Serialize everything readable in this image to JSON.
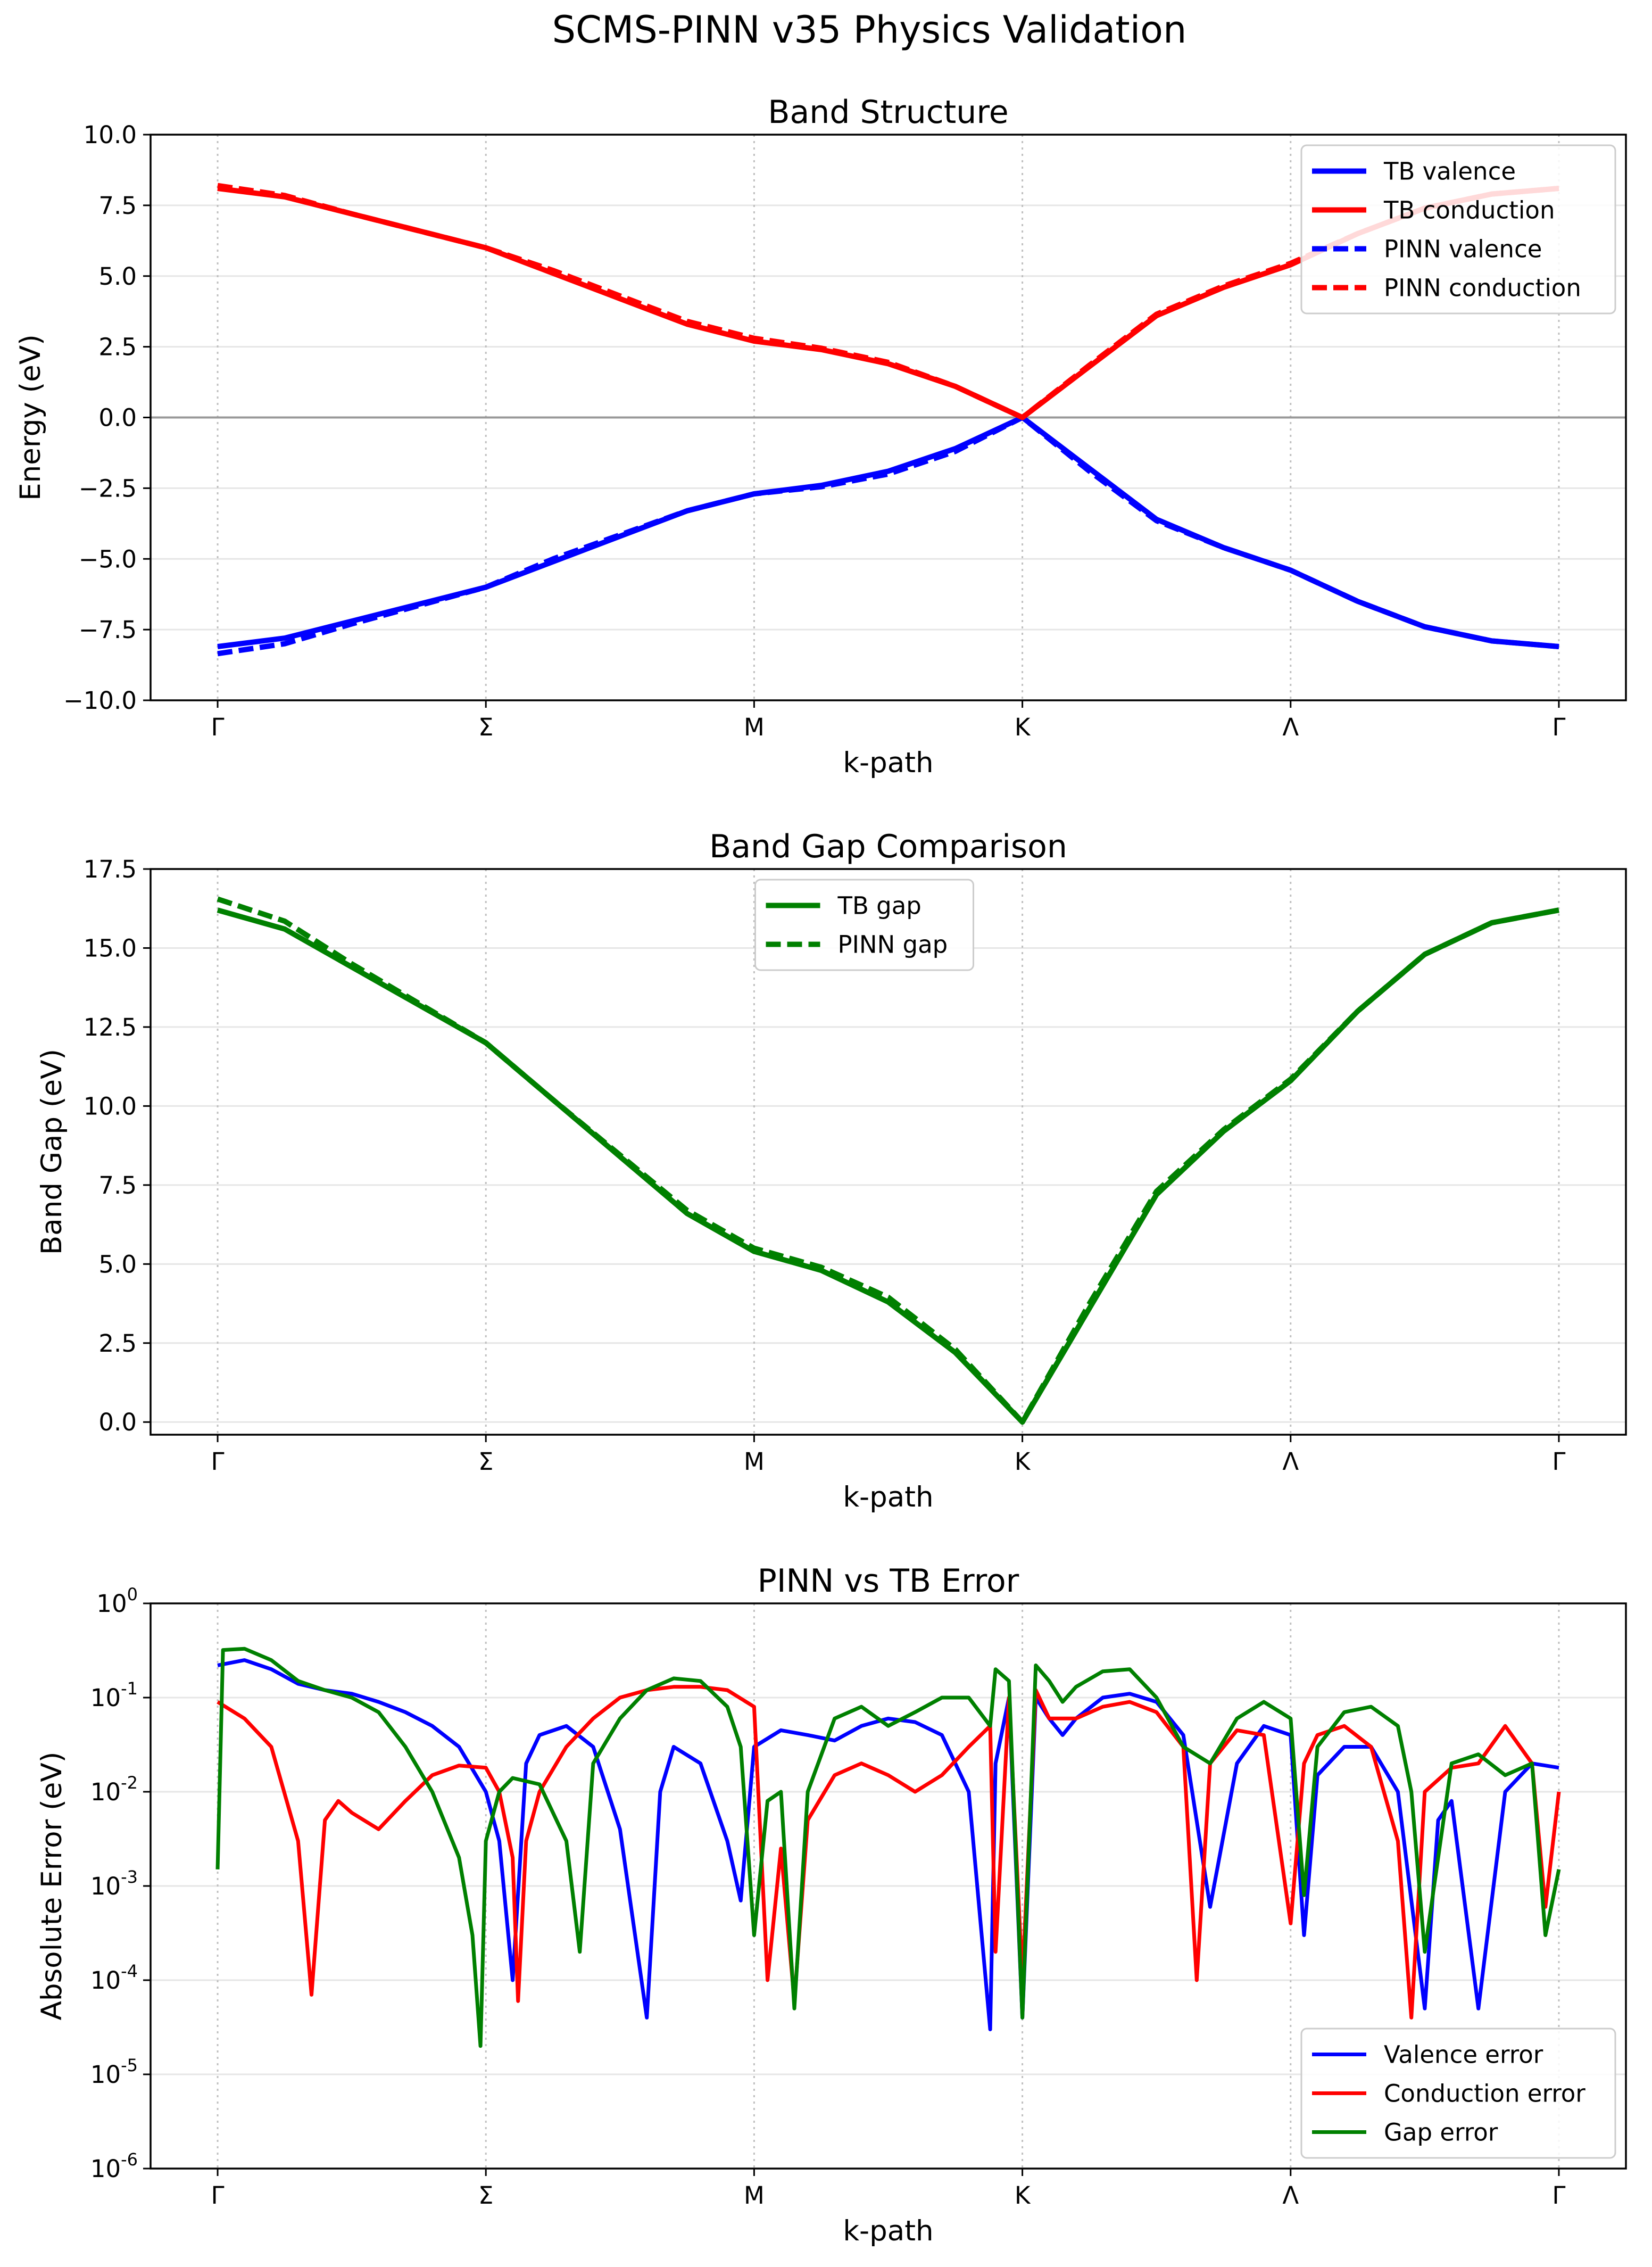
{
  "figure": {
    "title": "SCMS-PINN v35 Physics Validation"
  },
  "chart_data": [
    {
      "type": "line",
      "title": "Band Structure",
      "xlabel": "k-path",
      "ylabel": "Energy (eV)",
      "xlim": [
        0,
        5
      ],
      "ylim": [
        -10,
        10
      ],
      "yscale": "linear",
      "yticks": [
        -10,
        -7.5,
        -5,
        -2.5,
        0,
        2.5,
        5,
        7.5,
        10
      ],
      "ytick_labels": [
        "−10.0",
        "−7.5",
        "−5.0",
        "−2.5",
        "0.0",
        "2.5",
        "5.0",
        "7.5",
        "10.0"
      ],
      "xticks": [
        0,
        1,
        2,
        3,
        4,
        5
      ],
      "xtick_labels": [
        "Γ",
        "Σ",
        "M",
        "K",
        "Λ",
        "Γ"
      ],
      "grid": "y",
      "zero_line": true,
      "legend_position": "top-right",
      "series": [
        {
          "name": "TB valence",
          "color": "#0000ff",
          "style": "solid",
          "x": [
            0,
            0.25,
            0.5,
            0.75,
            1.0,
            1.25,
            1.5,
            1.75,
            2.0,
            2.25,
            2.5,
            2.75,
            3.0,
            3.25,
            3.5,
            3.75,
            4.0,
            4.25,
            4.5,
            4.75,
            5.0
          ],
          "y": [
            -8.1,
            -7.8,
            -7.2,
            -6.6,
            -6.0,
            -5.1,
            -4.2,
            -3.3,
            -2.7,
            -2.4,
            -1.9,
            -1.1,
            0.0,
            -1.8,
            -3.6,
            -4.6,
            -5.4,
            -6.5,
            -7.4,
            -7.9,
            -8.1
          ]
        },
        {
          "name": "TB conduction",
          "color": "#ff0000",
          "style": "solid",
          "x": [
            0,
            0.25,
            0.5,
            0.75,
            1.0,
            1.25,
            1.5,
            1.75,
            2.0,
            2.25,
            2.5,
            2.75,
            3.0,
            3.25,
            3.5,
            3.75,
            4.0,
            4.25,
            4.5,
            4.75,
            5.0
          ],
          "y": [
            8.1,
            7.8,
            7.2,
            6.6,
            6.0,
            5.1,
            4.2,
            3.3,
            2.7,
            2.4,
            1.9,
            1.1,
            0.0,
            1.8,
            3.6,
            4.6,
            5.4,
            6.5,
            7.4,
            7.9,
            8.1
          ]
        },
        {
          "name": "PINN valence",
          "color": "#0000ff",
          "style": "dashed",
          "x": [
            0,
            0.25,
            0.5,
            0.75,
            1.0,
            1.25,
            1.5,
            1.75,
            2.0,
            2.25,
            2.5,
            2.75,
            3.0,
            3.25,
            3.5,
            3.75,
            4.0,
            4.25,
            4.5,
            4.75,
            5.0
          ],
          "y": [
            -8.35,
            -8.0,
            -7.3,
            -6.65,
            -6.0,
            -5.0,
            -4.15,
            -3.3,
            -2.7,
            -2.45,
            -2.0,
            -1.2,
            0.0,
            -1.9,
            -3.65,
            -4.6,
            -5.4,
            -6.5,
            -7.4,
            -7.9,
            -8.1
          ]
        },
        {
          "name": "PINN conduction",
          "color": "#ff0000",
          "style": "dashed",
          "x": [
            0,
            0.25,
            0.5,
            0.75,
            1.0,
            1.25,
            1.5,
            1.75,
            2.0,
            2.25,
            2.5,
            2.75,
            3.0,
            3.25,
            3.5,
            3.75,
            4.0,
            4.25,
            4.5,
            4.75,
            5.0
          ],
          "y": [
            8.2,
            7.85,
            7.2,
            6.6,
            6.0,
            5.2,
            4.3,
            3.4,
            2.8,
            2.45,
            1.95,
            1.1,
            0.0,
            1.85,
            3.65,
            4.65,
            5.45,
            6.5,
            7.4,
            7.9,
            8.1
          ]
        }
      ]
    },
    {
      "type": "line",
      "title": "Band Gap Comparison",
      "xlabel": "k-path",
      "ylabel": "Band Gap (eV)",
      "xlim": [
        0,
        5
      ],
      "ylim": [
        -0.4,
        17.5
      ],
      "yscale": "linear",
      "yticks": [
        0,
        2.5,
        5,
        7.5,
        10,
        12.5,
        15,
        17.5
      ],
      "ytick_labels": [
        "0.0",
        "2.5",
        "5.0",
        "7.5",
        "10.0",
        "12.5",
        "15.0",
        "17.5"
      ],
      "xticks": [
        0,
        1,
        2,
        3,
        4,
        5
      ],
      "xtick_labels": [
        "Γ",
        "Σ",
        "M",
        "K",
        "Λ",
        "Γ"
      ],
      "grid": "y",
      "zero_line": false,
      "legend_position": "top-center",
      "series": [
        {
          "name": "TB gap",
          "color": "#008000",
          "style": "solid",
          "x": [
            0,
            0.25,
            0.5,
            0.75,
            1.0,
            1.25,
            1.5,
            1.75,
            2.0,
            2.25,
            2.5,
            2.75,
            3.0,
            3.25,
            3.5,
            3.75,
            4.0,
            4.25,
            4.5,
            4.75,
            5.0
          ],
          "y": [
            16.2,
            15.6,
            14.4,
            13.2,
            12.0,
            10.2,
            8.4,
            6.6,
            5.4,
            4.8,
            3.8,
            2.2,
            0.0,
            3.6,
            7.2,
            9.2,
            10.8,
            13.0,
            14.8,
            15.8,
            16.2
          ]
        },
        {
          "name": "PINN gap",
          "color": "#008000",
          "style": "dashed",
          "x": [
            0,
            0.25,
            0.5,
            0.75,
            1.0,
            1.25,
            1.5,
            1.75,
            2.0,
            2.25,
            2.5,
            2.75,
            3.0,
            3.25,
            3.5,
            3.75,
            4.0,
            4.25,
            4.5,
            4.75,
            5.0
          ],
          "y": [
            16.55,
            15.85,
            14.5,
            13.25,
            12.0,
            10.2,
            8.45,
            6.7,
            5.5,
            4.9,
            3.95,
            2.3,
            0.0,
            3.75,
            7.3,
            9.25,
            10.85,
            13.0,
            14.8,
            15.8,
            16.2
          ]
        }
      ]
    },
    {
      "type": "line",
      "title": "PINN vs TB Error",
      "xlabel": "k-path",
      "ylabel": "Absolute Error (eV)",
      "xlim": [
        0,
        5
      ],
      "ylim": [
        1e-06,
        1
      ],
      "yscale": "log",
      "ytick_exponents": [
        0,
        -1,
        -2,
        -3,
        -4,
        -5,
        -6
      ],
      "ytick_base": "10",
      "xticks": [
        0,
        1,
        2,
        3,
        4,
        5
      ],
      "xtick_labels": [
        "Γ",
        "Σ",
        "M",
        "K",
        "Λ",
        "Γ"
      ],
      "grid": "y",
      "zero_line": false,
      "legend_position": "bottom-right",
      "series": [
        {
          "name": "Valence error",
          "color": "#0000ff",
          "style": "solid",
          "x": [
            0,
            0.1,
            0.2,
            0.3,
            0.4,
            0.5,
            0.6,
            0.7,
            0.8,
            0.9,
            1.0,
            1.05,
            1.1,
            1.15,
            1.2,
            1.3,
            1.4,
            1.5,
            1.6,
            1.65,
            1.7,
            1.8,
            1.9,
            1.95,
            2.0,
            2.1,
            2.2,
            2.3,
            2.4,
            2.5,
            2.6,
            2.7,
            2.8,
            2.88,
            2.9,
            2.95,
            3.0,
            3.05,
            3.1,
            3.15,
            3.2,
            3.3,
            3.4,
            3.5,
            3.6,
            3.7,
            3.8,
            3.9,
            4.0,
            4.05,
            4.1,
            4.2,
            4.3,
            4.4,
            4.5,
            4.55,
            4.6,
            4.7,
            4.8,
            4.9,
            5.0
          ],
          "y": [
            0.22,
            0.25,
            0.2,
            0.14,
            0.12,
            0.11,
            0.09,
            0.07,
            0.05,
            0.03,
            0.01,
            0.003,
            0.0001,
            0.02,
            0.04,
            0.05,
            0.03,
            0.004,
            4e-05,
            0.01,
            0.03,
            0.02,
            0.003,
            0.0007,
            0.03,
            0.045,
            0.04,
            0.035,
            0.05,
            0.06,
            0.055,
            0.04,
            0.01,
            3e-05,
            0.02,
            0.1,
            4e-05,
            0.1,
            0.06,
            0.04,
            0.06,
            0.1,
            0.11,
            0.09,
            0.04,
            0.0006,
            0.02,
            0.05,
            0.04,
            0.0003,
            0.015,
            0.03,
            0.03,
            0.01,
            5e-05,
            0.005,
            0.008,
            5e-05,
            0.01,
            0.02,
            0.018
          ]
        },
        {
          "name": "Conduction error",
          "color": "#ff0000",
          "style": "solid",
          "x": [
            0,
            0.1,
            0.2,
            0.3,
            0.35,
            0.4,
            0.45,
            0.5,
            0.6,
            0.7,
            0.8,
            0.9,
            1.0,
            1.05,
            1.1,
            1.12,
            1.15,
            1.2,
            1.3,
            1.4,
            1.5,
            1.6,
            1.7,
            1.8,
            1.9,
            2.0,
            2.05,
            2.1,
            2.15,
            2.2,
            2.3,
            2.4,
            2.5,
            2.6,
            2.7,
            2.8,
            2.88,
            2.9,
            2.95,
            3.0,
            3.05,
            3.1,
            3.2,
            3.3,
            3.4,
            3.5,
            3.6,
            3.65,
            3.7,
            3.8,
            3.9,
            4.0,
            4.05,
            4.1,
            4.2,
            4.3,
            4.4,
            4.45,
            4.5,
            4.6,
            4.7,
            4.8,
            4.9,
            4.95,
            5.0
          ],
          "y": [
            0.09,
            0.06,
            0.03,
            0.003,
            7e-05,
            0.005,
            0.008,
            0.006,
            0.004,
            0.008,
            0.015,
            0.019,
            0.018,
            0.01,
            0.002,
            6e-05,
            0.003,
            0.01,
            0.03,
            0.06,
            0.1,
            0.12,
            0.13,
            0.13,
            0.12,
            0.08,
            0.0001,
            0.0025,
            6e-05,
            0.005,
            0.015,
            0.02,
            0.015,
            0.01,
            0.015,
            0.03,
            0.05,
            0.0002,
            0.1,
            0.0001,
            0.12,
            0.06,
            0.06,
            0.08,
            0.09,
            0.07,
            0.03,
            0.0001,
            0.02,
            0.045,
            0.04,
            0.0004,
            0.02,
            0.04,
            0.05,
            0.03,
            0.003,
            4e-05,
            0.01,
            0.018,
            0.02,
            0.05,
            0.02,
            0.0006,
            0.01
          ]
        },
        {
          "name": "Gap error",
          "color": "#008000",
          "style": "solid",
          "x": [
            0,
            0.02,
            0.1,
            0.2,
            0.3,
            0.4,
            0.5,
            0.6,
            0.7,
            0.8,
            0.9,
            0.95,
            0.98,
            1.0,
            1.05,
            1.1,
            1.2,
            1.3,
            1.35,
            1.4,
            1.5,
            1.6,
            1.7,
            1.8,
            1.9,
            1.95,
            2.0,
            2.05,
            2.1,
            2.15,
            2.2,
            2.3,
            2.4,
            2.5,
            2.6,
            2.7,
            2.8,
            2.88,
            2.9,
            2.95,
            3.0,
            3.05,
            3.1,
            3.15,
            3.2,
            3.3,
            3.4,
            3.5,
            3.6,
            3.7,
            3.8,
            3.9,
            4.0,
            4.05,
            4.1,
            4.2,
            4.3,
            4.4,
            4.45,
            4.5,
            4.6,
            4.7,
            4.8,
            4.9,
            4.95,
            5.0
          ],
          "y": [
            0.0015,
            0.32,
            0.33,
            0.25,
            0.15,
            0.12,
            0.1,
            0.07,
            0.03,
            0.01,
            0.002,
            0.0003,
            2e-05,
            0.003,
            0.01,
            0.014,
            0.012,
            0.003,
            0.0002,
            0.02,
            0.06,
            0.12,
            0.16,
            0.15,
            0.08,
            0.03,
            0.0003,
            0.008,
            0.01,
            5e-05,
            0.01,
            0.06,
            0.08,
            0.05,
            0.07,
            0.1,
            0.1,
            0.05,
            0.2,
            0.15,
            4e-05,
            0.22,
            0.15,
            0.09,
            0.13,
            0.19,
            0.2,
            0.1,
            0.03,
            0.02,
            0.06,
            0.09,
            0.06,
            0.0008,
            0.03,
            0.07,
            0.08,
            0.05,
            0.01,
            0.0002,
            0.02,
            0.025,
            0.015,
            0.02,
            0.0003,
            0.0015
          ]
        }
      ]
    }
  ]
}
